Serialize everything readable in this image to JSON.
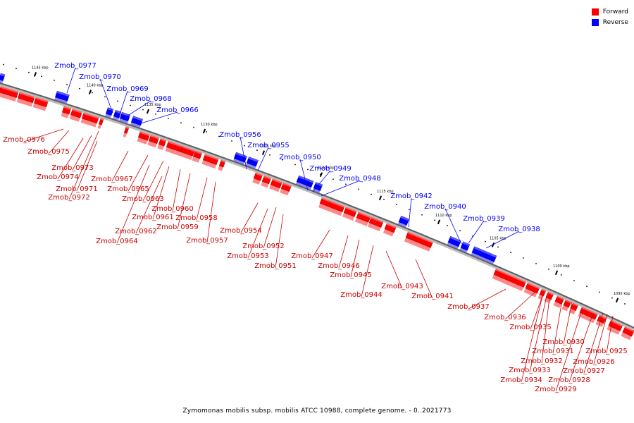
{
  "legend": {
    "forward_label": "Forward",
    "reverse_label": "Reverse",
    "forward_color": "#ff0000",
    "reverse_color": "#0000ff"
  },
  "caption": "Zymomonas mobilis subsp. mobilis ATCC 10988, complete genome. - 0..2021773",
  "ticks": [
    "1145 kbp",
    "1140 kbp",
    "1135 kbp",
    "1130 kbp",
    "1125 kbp",
    "1120 kbp",
    "1115 kbp",
    "1110 kbp",
    "1105 kbp",
    "1100 kbp",
    "1095 kbp"
  ],
  "genes": {
    "reverse": [
      "Zmob_0977",
      "Zmob_0970",
      "Zmob_0969",
      "Zmob_0968",
      "Zmob_0966",
      "Zmob_0956",
      "Zmob_0955",
      "Zmob_0950",
      "Zmob_0949",
      "Zmob_0948",
      "Zmob_0942",
      "Zmob_0940",
      "Zmob_0939",
      "Zmob_0938"
    ],
    "forward": [
      "Zmob_0976",
      "Zmob_0975",
      "Zmob_0973",
      "Zmob_0974",
      "Zmob_0971",
      "Zmob_0972",
      "Zmob_0967",
      "Zmob_0965",
      "Zmob_0963",
      "Zmob_0960",
      "Zmob_0961",
      "Zmob_0959",
      "Zmob_0958",
      "Zmob_0962",
      "Zmob_0964",
      "Zmob_0957",
      "Zmob_0954",
      "Zmob_0952",
      "Zmob_0953",
      "Zmob_0951",
      "Zmob_0947",
      "Zmob_0946",
      "Zmob_0945",
      "Zmob_0944",
      "Zmob_0943",
      "Zmob_0941",
      "Zmob_0937",
      "Zmob_0936",
      "Zmob_0935",
      "Zmob_0930",
      "Zmob_0931",
      "Zmob_0925",
      "Zmob_0932",
      "Zmob_0926",
      "Zmob_0933",
      "Zmob_0927",
      "Zmob_0934",
      "Zmob_0928",
      "Zmob_0929"
    ]
  }
}
